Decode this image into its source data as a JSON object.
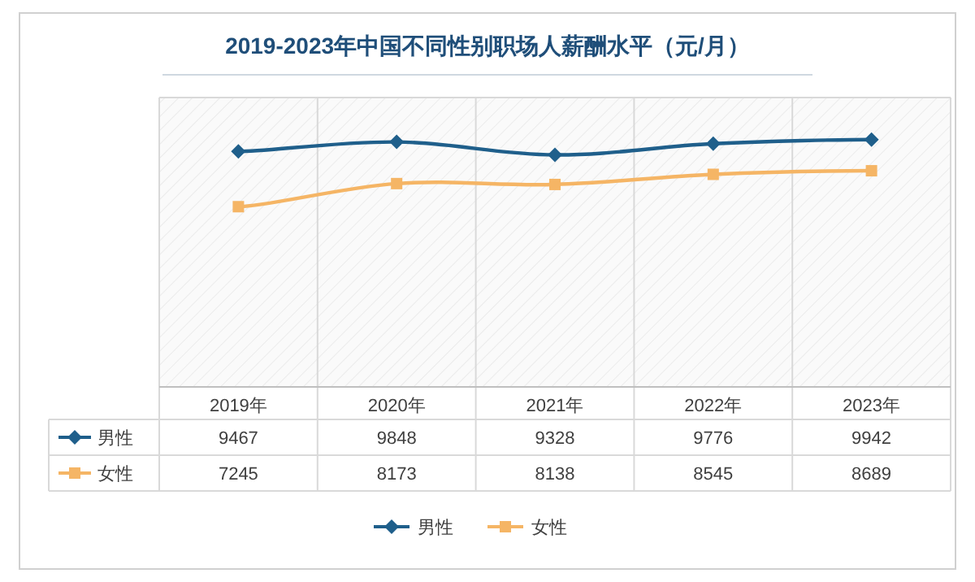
{
  "chart_data": {
    "type": "line",
    "title": "2019-2023年中国不同性别职场人薪酬水平（元/月）",
    "categories": [
      "2019年",
      "2020年",
      "2021年",
      "2022年",
      "2023年"
    ],
    "series": [
      {
        "name": "男性",
        "color": "#1f5f8b",
        "marker": "diamond",
        "values": [
          9467,
          9848,
          9328,
          9776,
          9942
        ]
      },
      {
        "name": "女性",
        "color": "#f5b565",
        "marker": "square",
        "values": [
          7245,
          8173,
          8138,
          8545,
          8689
        ]
      }
    ],
    "data_labels": true,
    "legend": "bottom"
  }
}
